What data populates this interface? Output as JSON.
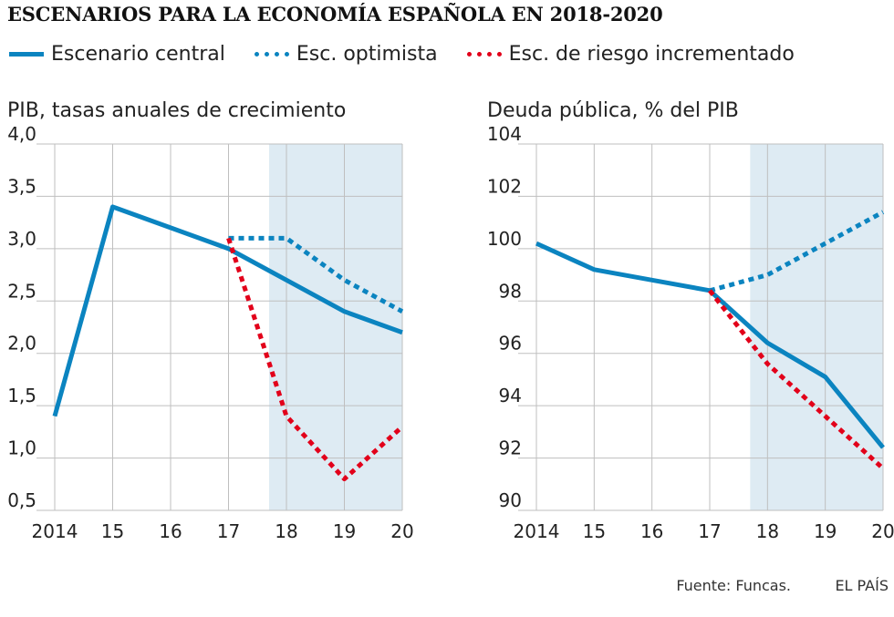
{
  "title": "ESCENARIOS PARA LA ECONOMÍA ESPAÑOLA EN 2018-2020",
  "legend": {
    "central": "Escenario central",
    "optimista": "Esc. optimista",
    "riesgo": "Esc. de riesgo incrementado"
  },
  "colors": {
    "blue": "#0b84c0",
    "red": "#e2001a",
    "shade": "#deebf3",
    "grid": "#bfbfbf"
  },
  "footer": {
    "source": "Fuente: Funcas.",
    "brand": "EL PAÍS"
  },
  "chart_data": [
    {
      "type": "line",
      "title": "PIB, tasas anuales de crecimiento",
      "categories": [
        "2014",
        "15",
        "16",
        "17",
        "18",
        "19",
        "20"
      ],
      "ylim": [
        0.5,
        4.0
      ],
      "yticks": [
        "0,5",
        "1,0",
        "1,5",
        "2,0",
        "2,5",
        "3,0",
        "3,5",
        "4,0"
      ],
      "ytick_values": [
        0.5,
        1.0,
        1.5,
        2.0,
        2.5,
        3.0,
        3.5,
        4.0
      ],
      "shaded_from": 17.7,
      "series": [
        {
          "name": "Escenario central",
          "style": "solid",
          "x": [
            2014,
            2015,
            2016,
            2017,
            2018,
            2019,
            2020
          ],
          "values": [
            1.4,
            3.4,
            3.2,
            3.0,
            2.7,
            2.4,
            2.2
          ]
        },
        {
          "name": "Esc. optimista",
          "style": "dotted",
          "x": [
            2017,
            2018,
            2019,
            2020
          ],
          "values": [
            3.1,
            3.1,
            2.7,
            2.4
          ]
        },
        {
          "name": "Esc. de riesgo incrementado",
          "style": "dotted-red",
          "x": [
            2017,
            2018,
            2019,
            2020
          ],
          "values": [
            3.1,
            1.4,
            0.8,
            1.3
          ]
        }
      ]
    },
    {
      "type": "line",
      "title": "Deuda pública, % del PIB",
      "categories": [
        "2014",
        "15",
        "16",
        "17",
        "18",
        "19",
        "20"
      ],
      "ylim": [
        90,
        104
      ],
      "yticks": [
        "90",
        "92",
        "94",
        "96",
        "98",
        "100",
        "102",
        "104"
      ],
      "ytick_values": [
        90,
        92,
        94,
        96,
        98,
        100,
        102,
        104
      ],
      "shaded_from": 17.7,
      "series": [
        {
          "name": "Escenario central",
          "style": "solid",
          "x": [
            2014,
            2015,
            2016,
            2017,
            2018,
            2019,
            2020
          ],
          "values": [
            100.2,
            99.2,
            98.8,
            98.4,
            96.4,
            95.1,
            92.4
          ]
        },
        {
          "name": "Esc. optimista",
          "style": "dotted",
          "x": [
            2017,
            2018,
            2019,
            2020
          ],
          "values": [
            98.4,
            99.0,
            100.2,
            101.4
          ]
        },
        {
          "name": "Esc. de riesgo incrementado",
          "style": "dotted-red",
          "x": [
            2017,
            2018,
            2019,
            2020
          ],
          "values": [
            98.4,
            95.6,
            93.6,
            91.6
          ]
        }
      ]
    }
  ]
}
